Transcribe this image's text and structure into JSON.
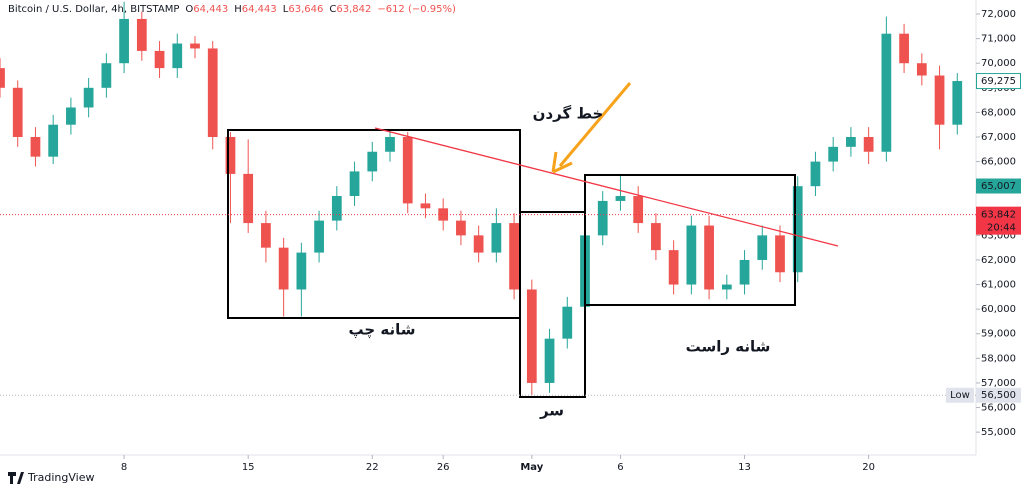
{
  "chart_data": {
    "type": "candlestick",
    "title": "Bitcoin / U.S. Dollar, 4h, BITSTAMP",
    "header_values": [
      {
        "k": "O",
        "v": "64,443"
      },
      {
        "k": "H",
        "v": "64,443"
      },
      {
        "k": "L",
        "v": "63,646"
      },
      {
        "k": "C",
        "v": "63,842"
      }
    ],
    "change": "−612 (−0.95%)",
    "up_color": "#26a69a",
    "down_color": "#ef5350",
    "x": [
      1,
      2,
      3,
      4,
      5,
      6,
      7,
      8,
      9,
      10,
      11,
      12,
      13,
      14,
      15,
      16,
      17,
      18,
      19,
      20,
      21,
      22,
      23,
      24,
      25,
      26,
      27,
      28,
      29,
      30,
      31,
      32,
      33,
      34,
      35,
      36,
      37,
      38,
      39,
      40,
      41,
      42,
      43,
      44,
      45,
      46,
      47,
      48,
      49,
      50,
      51,
      52,
      53,
      54,
      55
    ],
    "open": [
      69800,
      69000,
      67000,
      66200,
      67500,
      68200,
      69000,
      70000,
      71800,
      70500,
      69800,
      70800,
      70600,
      67000,
      65500,
      63500,
      62500,
      60800,
      62300,
      63600,
      64600,
      65600,
      66400,
      67000,
      64300,
      64100,
      63600,
      63000,
      62300,
      63500,
      60800,
      57000,
      58800,
      60100,
      63000,
      64400,
      64600,
      63500,
      62400,
      61000,
      63400,
      60800,
      61000,
      62000,
      63000,
      61500,
      65000,
      66000,
      66600,
      67000,
      66400,
      71200,
      70000,
      69500,
      67500
    ],
    "high": [
      70200,
      69300,
      67400,
      67900,
      68600,
      69400,
      70400,
      72500,
      72100,
      70900,
      71200,
      71100,
      70900,
      67200,
      66900,
      64000,
      62900,
      62700,
      64000,
      65000,
      66000,
      66800,
      67300,
      67200,
      64700,
      64500,
      64000,
      63400,
      64100,
      63900,
      61200,
      59200,
      60500,
      63400,
      64800,
      65500,
      65000,
      63900,
      62800,
      63800,
      63800,
      61400,
      62400,
      63400,
      63400,
      65400,
      66400,
      67000,
      67400,
      67400,
      71900,
      71600,
      70400,
      69900,
      69600
    ],
    "low": [
      68600,
      66600,
      65800,
      65900,
      67100,
      67800,
      68600,
      69600,
      70100,
      69400,
      69400,
      70200,
      66500,
      63500,
      63100,
      61900,
      59700,
      59700,
      61900,
      63200,
      64200,
      65200,
      66000,
      63900,
      63700,
      63200,
      62600,
      61900,
      61900,
      60400,
      56500,
      56600,
      58400,
      59700,
      62600,
      64000,
      63100,
      62000,
      60600,
      60600,
      60400,
      60400,
      60600,
      61600,
      61100,
      61100,
      64600,
      65600,
      66200,
      65900,
      66000,
      69600,
      69100,
      66500,
      67100
    ],
    "close": [
      69000,
      67000,
      66200,
      67500,
      68200,
      69000,
      70000,
      71800,
      70500,
      69800,
      70800,
      70600,
      67000,
      65500,
      63500,
      62500,
      60800,
      62300,
      63600,
      64600,
      65600,
      66400,
      67000,
      64300,
      64100,
      63600,
      63000,
      62300,
      63500,
      60800,
      57000,
      58800,
      60100,
      63000,
      64400,
      64600,
      63500,
      62400,
      61000,
      63400,
      60800,
      61000,
      62000,
      63000,
      61500,
      65000,
      66000,
      66600,
      67000,
      66400,
      71200,
      70000,
      69500,
      67500,
      69275
    ],
    "xlim": [
      1,
      56
    ],
    "xticks": [
      8,
      15,
      22,
      26,
      {
        "value": 31,
        "label": "May"
      },
      {
        "value": 36,
        "label": "6"
      },
      {
        "value": 43,
        "label": "13"
      },
      {
        "value": 50,
        "label": "20"
      }
    ],
    "ylim": [
      54070,
      72570
    ],
    "yticks": [
      {
        "value": 55000,
        "label": "55,000"
      },
      {
        "value": 56000,
        "label": "56,000"
      },
      {
        "value": 57000,
        "label": "57,000"
      },
      {
        "value": 58000,
        "label": "58,000"
      },
      {
        "value": 59000,
        "label": "59,000"
      },
      {
        "value": 60000,
        "label": "60,000"
      },
      {
        "value": 61000,
        "label": "61,000"
      },
      {
        "value": 62000,
        "label": "62,000"
      },
      {
        "value": 63000,
        "label": "63,000"
      },
      {
        "value": 64000,
        "label": "64,000"
      },
      {
        "value": 65000,
        "label": "65,000"
      },
      {
        "value": 66000,
        "label": "66,000"
      },
      {
        "value": 67000,
        "label": "67,000"
      },
      {
        "value": 68000,
        "label": "68,000"
      },
      {
        "value": 69000,
        "label": "69,000"
      },
      {
        "value": 70000,
        "label": "70,000"
      },
      {
        "value": 71000,
        "label": "71,000"
      },
      {
        "value": 72000,
        "label": "72,000"
      }
    ],
    "price_tags": [
      {
        "value": 69275,
        "label": "69,275",
        "style": "outline",
        "color": "#26a69a"
      },
      {
        "value": 65007,
        "label": "65,007",
        "style": "fill",
        "color": "#26a69a"
      },
      {
        "value": 63842,
        "label": "63,842",
        "sub": "20:44",
        "style": "fill",
        "color": "#f23645"
      },
      {
        "value": 56500,
        "label": "56,500",
        "tag": "Low",
        "style": "plain",
        "color": "#e0e3eb"
      }
    ],
    "annotations": {
      "neckline": "خط گردن",
      "left_shoulder": "شانه چپ",
      "head": "سر",
      "right_shoulder": "شانه راست"
    },
    "watermark": "TradingView"
  }
}
